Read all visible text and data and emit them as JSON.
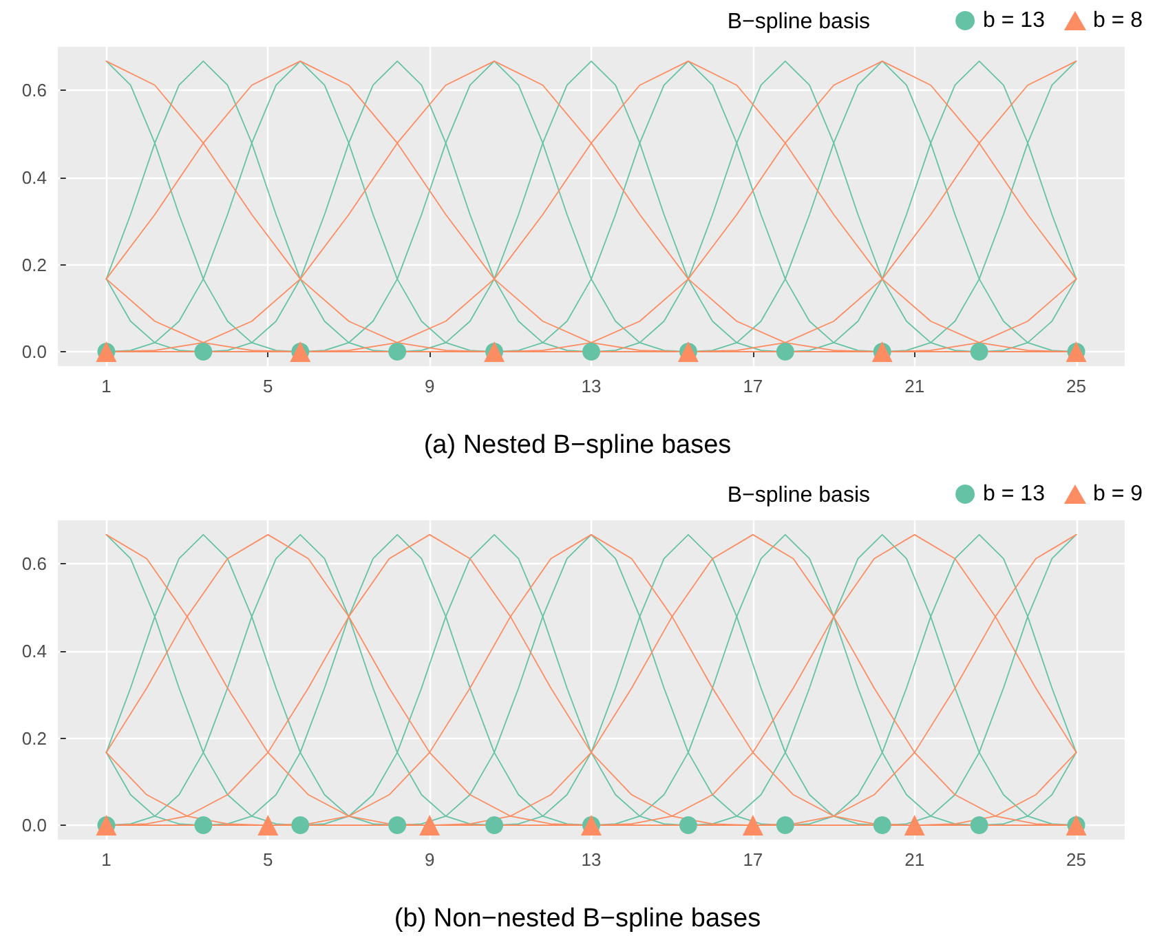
{
  "chart_data": [
    {
      "type": "line",
      "title": "(a) Nested B−spline bases",
      "legend_title": "B−spline basis",
      "legend": "top right",
      "grid": true,
      "xlim": [
        -0.2,
        26.2
      ],
      "ylim": [
        -0.033,
        0.7
      ],
      "xticks": [
        1,
        5,
        9,
        13,
        17,
        21,
        25
      ],
      "yticks": [
        {
          "value": 0,
          "label": "0.0"
        },
        {
          "value": 0.2,
          "label": "0.2"
        },
        {
          "value": 0.4,
          "label": "0.4"
        },
        {
          "value": 0.6,
          "label": "0.6"
        }
      ],
      "series": [
        {
          "color": "#66c2a5",
          "x": [
            1,
            1.6,
            2.2,
            2.8,
            3.4,
            25
          ],
          "values": [
            0.167,
            0.07,
            0.021,
            0.003,
            0,
            0
          ]
        },
        {
          "color": "#66c2a5",
          "x": [
            1,
            1.6,
            2.2,
            2.8,
            3.4,
            4,
            4.6,
            5.2,
            5.8,
            25
          ],
          "values": [
            0.667,
            0.612,
            0.479,
            0.315,
            0.167,
            0.07,
            0.021,
            0.003,
            0,
            0
          ]
        },
        {
          "color": "#66c2a5",
          "x": [
            1,
            1.6,
            2.2,
            2.8,
            3.4,
            4,
            4.6,
            5.2,
            5.8,
            6.4,
            7,
            7.6,
            8.2,
            25
          ],
          "values": [
            0.167,
            0.315,
            0.479,
            0.612,
            0.667,
            0.612,
            0.479,
            0.315,
            0.167,
            0.07,
            0.021,
            0.003,
            0,
            0
          ]
        },
        {
          "color": "#66c2a5",
          "x": [
            1,
            1.6,
            2.2,
            2.8,
            3.4,
            4,
            4.6,
            5.2,
            5.8,
            6.4,
            7,
            7.6,
            8.2,
            8.8,
            9.4,
            10,
            10.6,
            25
          ],
          "values": [
            0,
            0.003,
            0.021,
            0.07,
            0.167,
            0.315,
            0.479,
            0.612,
            0.667,
            0.612,
            0.479,
            0.315,
            0.167,
            0.07,
            0.021,
            0.003,
            0,
            0
          ]
        },
        {
          "color": "#66c2a5",
          "x": [
            1,
            3.4,
            4,
            4.6,
            5.2,
            5.8,
            6.4,
            7,
            7.6,
            8.2,
            8.8,
            9.4,
            10,
            10.6,
            11.2,
            11.8,
            12.4,
            13,
            25
          ],
          "values": [
            0,
            0,
            0.003,
            0.021,
            0.07,
            0.167,
            0.315,
            0.479,
            0.612,
            0.667,
            0.612,
            0.479,
            0.315,
            0.167,
            0.07,
            0.021,
            0.003,
            0,
            0
          ]
        },
        {
          "color": "#66c2a5",
          "x": [
            1,
            5.8,
            6.4,
            7,
            7.6,
            8.2,
            8.8,
            9.4,
            10,
            10.6,
            11.2,
            11.8,
            12.4,
            13,
            13.6,
            14.2,
            14.8,
            15.4,
            25
          ],
          "values": [
            0,
            0,
            0.003,
            0.021,
            0.07,
            0.167,
            0.315,
            0.479,
            0.612,
            0.667,
            0.612,
            0.479,
            0.315,
            0.167,
            0.07,
            0.021,
            0.003,
            0,
            0
          ]
        },
        {
          "color": "#66c2a5",
          "x": [
            1,
            8.2,
            8.8,
            9.4,
            10,
            10.6,
            11.2,
            11.8,
            12.4,
            13,
            13.6,
            14.2,
            14.8,
            15.4,
            16,
            16.6,
            17.2,
            17.8,
            25
          ],
          "values": [
            0,
            0,
            0.003,
            0.021,
            0.07,
            0.167,
            0.315,
            0.479,
            0.612,
            0.667,
            0.612,
            0.479,
            0.315,
            0.167,
            0.07,
            0.021,
            0.003,
            0,
            0
          ]
        },
        {
          "color": "#66c2a5",
          "x": [
            1,
            10.6,
            11.2,
            11.8,
            12.4,
            13,
            13.6,
            14.2,
            14.8,
            15.4,
            16,
            16.6,
            17.2,
            17.8,
            18.4,
            19,
            19.6,
            20.2,
            25
          ],
          "values": [
            0,
            0,
            0.003,
            0.021,
            0.07,
            0.167,
            0.315,
            0.479,
            0.612,
            0.667,
            0.612,
            0.479,
            0.315,
            0.167,
            0.07,
            0.021,
            0.003,
            0,
            0
          ]
        },
        {
          "color": "#66c2a5",
          "x": [
            1,
            13,
            13.6,
            14.2,
            14.8,
            15.4,
            16,
            16.6,
            17.2,
            17.8,
            18.4,
            19,
            19.6,
            20.2,
            20.8,
            21.4,
            22,
            22.6,
            25
          ],
          "values": [
            0,
            0,
            0.003,
            0.021,
            0.07,
            0.167,
            0.315,
            0.479,
            0.612,
            0.667,
            0.612,
            0.479,
            0.315,
            0.167,
            0.07,
            0.021,
            0.003,
            0,
            0
          ]
        },
        {
          "color": "#66c2a5",
          "x": [
            1,
            15.4,
            16,
            16.6,
            17.2,
            17.8,
            18.4,
            19,
            19.6,
            20.2,
            20.8,
            21.4,
            22,
            22.6,
            23.2,
            23.8,
            24.4,
            25
          ],
          "values": [
            0,
            0,
            0.003,
            0.021,
            0.07,
            0.167,
            0.315,
            0.479,
            0.612,
            0.667,
            0.612,
            0.479,
            0.315,
            0.167,
            0.07,
            0.021,
            0.003,
            0
          ]
        },
        {
          "color": "#66c2a5",
          "x": [
            1,
            17.8,
            18.4,
            19,
            19.6,
            20.2,
            20.8,
            21.4,
            22,
            22.6,
            23.2,
            23.8,
            24.4,
            25
          ],
          "values": [
            0,
            0,
            0.003,
            0.021,
            0.07,
            0.167,
            0.315,
            0.479,
            0.612,
            0.667,
            0.612,
            0.479,
            0.315,
            0.167
          ]
        },
        {
          "color": "#66c2a5",
          "x": [
            1,
            20.2,
            20.8,
            21.4,
            22,
            22.6,
            23.2,
            23.8,
            24.4,
            25
          ],
          "values": [
            0,
            0,
            0.003,
            0.021,
            0.07,
            0.167,
            0.315,
            0.479,
            0.612,
            0.667
          ]
        },
        {
          "color": "#66c2a5",
          "x": [
            1,
            22.6,
            23.2,
            23.8,
            24.4,
            25
          ],
          "values": [
            0,
            0,
            0.003,
            0.021,
            0.07,
            0.167
          ]
        },
        {
          "color": "#fc8d62",
          "x": [
            1,
            2.2,
            3.4,
            4.6,
            5.8,
            25
          ],
          "values": [
            0.167,
            0.07,
            0.021,
            0.003,
            0,
            0
          ]
        },
        {
          "color": "#fc8d62",
          "x": [
            1,
            2.2,
            3.4,
            4.6,
            5.8,
            7,
            8.2,
            9.4,
            10.6,
            25
          ],
          "values": [
            0.667,
            0.612,
            0.479,
            0.315,
            0.167,
            0.07,
            0.021,
            0.003,
            0,
            0
          ]
        },
        {
          "color": "#fc8d62",
          "x": [
            1,
            2.2,
            3.4,
            4.6,
            5.8,
            7,
            8.2,
            9.4,
            10.6,
            11.8,
            13,
            14.2,
            15.4,
            25
          ],
          "values": [
            0.167,
            0.315,
            0.479,
            0.612,
            0.667,
            0.612,
            0.479,
            0.315,
            0.167,
            0.07,
            0.021,
            0.003,
            0,
            0
          ]
        },
        {
          "color": "#fc8d62",
          "x": [
            1,
            2.2,
            3.4,
            4.6,
            5.8,
            7,
            8.2,
            9.4,
            10.6,
            11.8,
            13,
            14.2,
            15.4,
            16.6,
            17.8,
            19,
            20.2,
            25
          ],
          "values": [
            0,
            0.003,
            0.021,
            0.07,
            0.167,
            0.315,
            0.479,
            0.612,
            0.667,
            0.612,
            0.479,
            0.315,
            0.167,
            0.07,
            0.021,
            0.003,
            0,
            0
          ]
        },
        {
          "color": "#fc8d62",
          "x": [
            1,
            5.8,
            7,
            8.2,
            9.4,
            10.6,
            11.8,
            13,
            14.2,
            15.4,
            16.6,
            17.8,
            19,
            20.2,
            21.4,
            22.6,
            23.8,
            25
          ],
          "values": [
            0,
            0,
            0.003,
            0.021,
            0.07,
            0.167,
            0.315,
            0.479,
            0.612,
            0.667,
            0.612,
            0.479,
            0.315,
            0.167,
            0.07,
            0.021,
            0.003,
            0
          ]
        },
        {
          "color": "#fc8d62",
          "x": [
            1,
            10.6,
            11.8,
            13,
            14.2,
            15.4,
            16.6,
            17.8,
            19,
            20.2,
            21.4,
            22.6,
            23.8,
            25
          ],
          "values": [
            0,
            0,
            0.003,
            0.021,
            0.07,
            0.167,
            0.315,
            0.479,
            0.612,
            0.667,
            0.612,
            0.479,
            0.315,
            0.167
          ]
        },
        {
          "color": "#fc8d62",
          "x": [
            1,
            15.4,
            16.6,
            17.8,
            19,
            20.2,
            21.4,
            22.6,
            23.8,
            25
          ],
          "values": [
            0,
            0,
            0.003,
            0.021,
            0.07,
            0.167,
            0.315,
            0.479,
            0.612,
            0.667
          ]
        },
        {
          "color": "#fc8d62",
          "x": [
            1,
            20.2,
            21.4,
            22.6,
            23.8,
            25
          ],
          "values": [
            0,
            0,
            0.003,
            0.021,
            0.07,
            0.167
          ]
        },
        {
          "type": "scatter",
          "name": "b = 13",
          "marker": "circle",
          "color": "#66c2a5",
          "x": [
            1,
            3.4,
            5.8,
            8.2,
            10.6,
            13,
            15.4,
            17.8,
            20.2,
            22.6,
            25
          ],
          "values": [
            0,
            0,
            0,
            0,
            0,
            0,
            0,
            0,
            0,
            0,
            0
          ]
        },
        {
          "type": "scatter",
          "name": "b = 8",
          "marker": "triangle",
          "color": "#fc8d62",
          "x": [
            1,
            5.8,
            10.6,
            15.4,
            20.2,
            25
          ],
          "values": [
            0,
            0,
            0,
            0,
            0,
            0
          ]
        }
      ]
    },
    {
      "type": "line",
      "title": "(b) Non−nested B−spline bases",
      "legend_title": "B−spline basis",
      "legend": "top right",
      "grid": true,
      "xlim": [
        -0.2,
        26.2
      ],
      "ylim": [
        -0.033,
        0.7
      ],
      "xticks": [
        1,
        5,
        9,
        13,
        17,
        21,
        25
      ],
      "yticks": [
        {
          "value": 0,
          "label": "0.0"
        },
        {
          "value": 0.2,
          "label": "0.2"
        },
        {
          "value": 0.4,
          "label": "0.4"
        },
        {
          "value": 0.6,
          "label": "0.6"
        }
      ],
      "series": [
        {
          "color": "#66c2a5",
          "x": [
            1,
            1.6,
            2.2,
            2.8,
            3.4,
            25
          ],
          "values": [
            0.167,
            0.07,
            0.021,
            0.003,
            0,
            0
          ]
        },
        {
          "color": "#66c2a5",
          "x": [
            1,
            1.6,
            2.2,
            2.8,
            3.4,
            4,
            4.6,
            5.2,
            5.8,
            25
          ],
          "values": [
            0.667,
            0.612,
            0.479,
            0.315,
            0.167,
            0.07,
            0.021,
            0.003,
            0,
            0
          ]
        },
        {
          "color": "#66c2a5",
          "x": [
            1,
            1.6,
            2.2,
            2.8,
            3.4,
            4,
            4.6,
            5.2,
            5.8,
            6.4,
            7,
            7.6,
            8.2,
            25
          ],
          "values": [
            0.167,
            0.315,
            0.479,
            0.612,
            0.667,
            0.612,
            0.479,
            0.315,
            0.167,
            0.07,
            0.021,
            0.003,
            0,
            0
          ]
        },
        {
          "color": "#66c2a5",
          "x": [
            1,
            1.6,
            2.2,
            2.8,
            3.4,
            4,
            4.6,
            5.2,
            5.8,
            6.4,
            7,
            7.6,
            8.2,
            8.8,
            9.4,
            10,
            10.6,
            25
          ],
          "values": [
            0,
            0.003,
            0.021,
            0.07,
            0.167,
            0.315,
            0.479,
            0.612,
            0.667,
            0.612,
            0.479,
            0.315,
            0.167,
            0.07,
            0.021,
            0.003,
            0,
            0
          ]
        },
        {
          "color": "#66c2a5",
          "x": [
            1,
            3.4,
            4,
            4.6,
            5.2,
            5.8,
            6.4,
            7,
            7.6,
            8.2,
            8.8,
            9.4,
            10,
            10.6,
            11.2,
            11.8,
            12.4,
            13,
            25
          ],
          "values": [
            0,
            0,
            0.003,
            0.021,
            0.07,
            0.167,
            0.315,
            0.479,
            0.612,
            0.667,
            0.612,
            0.479,
            0.315,
            0.167,
            0.07,
            0.021,
            0.003,
            0,
            0
          ]
        },
        {
          "color": "#66c2a5",
          "x": [
            1,
            5.8,
            6.4,
            7,
            7.6,
            8.2,
            8.8,
            9.4,
            10,
            10.6,
            11.2,
            11.8,
            12.4,
            13,
            13.6,
            14.2,
            14.8,
            15.4,
            25
          ],
          "values": [
            0,
            0,
            0.003,
            0.021,
            0.07,
            0.167,
            0.315,
            0.479,
            0.612,
            0.667,
            0.612,
            0.479,
            0.315,
            0.167,
            0.07,
            0.021,
            0.003,
            0,
            0
          ]
        },
        {
          "color": "#66c2a5",
          "x": [
            1,
            8.2,
            8.8,
            9.4,
            10,
            10.6,
            11.2,
            11.8,
            12.4,
            13,
            13.6,
            14.2,
            14.8,
            15.4,
            16,
            16.6,
            17.2,
            17.8,
            25
          ],
          "values": [
            0,
            0,
            0.003,
            0.021,
            0.07,
            0.167,
            0.315,
            0.479,
            0.612,
            0.667,
            0.612,
            0.479,
            0.315,
            0.167,
            0.07,
            0.021,
            0.003,
            0,
            0
          ]
        },
        {
          "color": "#66c2a5",
          "x": [
            1,
            10.6,
            11.2,
            11.8,
            12.4,
            13,
            13.6,
            14.2,
            14.8,
            15.4,
            16,
            16.6,
            17.2,
            17.8,
            18.4,
            19,
            19.6,
            20.2,
            25
          ],
          "values": [
            0,
            0,
            0.003,
            0.021,
            0.07,
            0.167,
            0.315,
            0.479,
            0.612,
            0.667,
            0.612,
            0.479,
            0.315,
            0.167,
            0.07,
            0.021,
            0.003,
            0,
            0
          ]
        },
        {
          "color": "#66c2a5",
          "x": [
            1,
            13,
            13.6,
            14.2,
            14.8,
            15.4,
            16,
            16.6,
            17.2,
            17.8,
            18.4,
            19,
            19.6,
            20.2,
            20.8,
            21.4,
            22,
            22.6,
            25
          ],
          "values": [
            0,
            0,
            0.003,
            0.021,
            0.07,
            0.167,
            0.315,
            0.479,
            0.612,
            0.667,
            0.612,
            0.479,
            0.315,
            0.167,
            0.07,
            0.021,
            0.003,
            0,
            0
          ]
        },
        {
          "color": "#66c2a5",
          "x": [
            1,
            15.4,
            16,
            16.6,
            17.2,
            17.8,
            18.4,
            19,
            19.6,
            20.2,
            20.8,
            21.4,
            22,
            22.6,
            23.2,
            23.8,
            24.4,
            25
          ],
          "values": [
            0,
            0,
            0.003,
            0.021,
            0.07,
            0.167,
            0.315,
            0.479,
            0.612,
            0.667,
            0.612,
            0.479,
            0.315,
            0.167,
            0.07,
            0.021,
            0.003,
            0
          ]
        },
        {
          "color": "#66c2a5",
          "x": [
            1,
            17.8,
            18.4,
            19,
            19.6,
            20.2,
            20.8,
            21.4,
            22,
            22.6,
            23.2,
            23.8,
            24.4,
            25
          ],
          "values": [
            0,
            0,
            0.003,
            0.021,
            0.07,
            0.167,
            0.315,
            0.479,
            0.612,
            0.667,
            0.612,
            0.479,
            0.315,
            0.167
          ]
        },
        {
          "color": "#66c2a5",
          "x": [
            1,
            20.2,
            20.8,
            21.4,
            22,
            22.6,
            23.2,
            23.8,
            24.4,
            25
          ],
          "values": [
            0,
            0,
            0.003,
            0.021,
            0.07,
            0.167,
            0.315,
            0.479,
            0.612,
            0.667
          ]
        },
        {
          "color": "#66c2a5",
          "x": [
            1,
            22.6,
            23.2,
            23.8,
            24.4,
            25
          ],
          "values": [
            0,
            0,
            0.003,
            0.021,
            0.07,
            0.167
          ]
        },
        {
          "color": "#fc8d62",
          "x": [
            1,
            2,
            3,
            4,
            5,
            25
          ],
          "values": [
            0.167,
            0.07,
            0.021,
            0.003,
            0,
            0
          ]
        },
        {
          "color": "#fc8d62",
          "x": [
            1,
            2,
            3,
            4,
            5,
            6,
            7,
            8,
            9,
            25
          ],
          "values": [
            0.667,
            0.612,
            0.479,
            0.315,
            0.167,
            0.07,
            0.021,
            0.003,
            0,
            0
          ]
        },
        {
          "color": "#fc8d62",
          "x": [
            1,
            2,
            3,
            4,
            5,
            6,
            7,
            8,
            9,
            10,
            11,
            12,
            13,
            25
          ],
          "values": [
            0.167,
            0.315,
            0.479,
            0.612,
            0.667,
            0.612,
            0.479,
            0.315,
            0.167,
            0.07,
            0.021,
            0.003,
            0,
            0
          ]
        },
        {
          "color": "#fc8d62",
          "x": [
            1,
            2,
            3,
            4,
            5,
            6,
            7,
            8,
            9,
            10,
            11,
            12,
            13,
            14,
            15,
            16,
            17,
            25
          ],
          "values": [
            0,
            0.003,
            0.021,
            0.07,
            0.167,
            0.315,
            0.479,
            0.612,
            0.667,
            0.612,
            0.479,
            0.315,
            0.167,
            0.07,
            0.021,
            0.003,
            0,
            0
          ]
        },
        {
          "color": "#fc8d62",
          "x": [
            1,
            5,
            6,
            7,
            8,
            9,
            10,
            11,
            12,
            13,
            14,
            15,
            16,
            17,
            18,
            19,
            20,
            21,
            25
          ],
          "values": [
            0,
            0,
            0.003,
            0.021,
            0.07,
            0.167,
            0.315,
            0.479,
            0.612,
            0.667,
            0.612,
            0.479,
            0.315,
            0.167,
            0.07,
            0.021,
            0.003,
            0,
            0
          ]
        },
        {
          "color": "#fc8d62",
          "x": [
            1,
            9,
            10,
            11,
            12,
            13,
            14,
            15,
            16,
            17,
            18,
            19,
            20,
            21,
            22,
            23,
            24,
            25
          ],
          "values": [
            0,
            0,
            0.003,
            0.021,
            0.07,
            0.167,
            0.315,
            0.479,
            0.612,
            0.667,
            0.612,
            0.479,
            0.315,
            0.167,
            0.07,
            0.021,
            0.003,
            0
          ]
        },
        {
          "color": "#fc8d62",
          "x": [
            1,
            13,
            14,
            15,
            16,
            17,
            18,
            19,
            20,
            21,
            22,
            23,
            24,
            25
          ],
          "values": [
            0,
            0,
            0.003,
            0.021,
            0.07,
            0.167,
            0.315,
            0.479,
            0.612,
            0.667,
            0.612,
            0.479,
            0.315,
            0.167
          ]
        },
        {
          "color": "#fc8d62",
          "x": [
            1,
            17,
            18,
            19,
            20,
            21,
            22,
            23,
            24,
            25
          ],
          "values": [
            0,
            0,
            0.003,
            0.021,
            0.07,
            0.167,
            0.315,
            0.479,
            0.612,
            0.667
          ]
        },
        {
          "color": "#fc8d62",
          "x": [
            1,
            21,
            22,
            23,
            24,
            25
          ],
          "values": [
            0,
            0,
            0.003,
            0.021,
            0.07,
            0.167
          ]
        },
        {
          "type": "scatter",
          "name": "b = 13",
          "marker": "circle",
          "color": "#66c2a5",
          "x": [
            1,
            3.4,
            5.8,
            8.2,
            10.6,
            13,
            15.4,
            17.8,
            20.2,
            22.6,
            25
          ],
          "values": [
            0,
            0,
            0,
            0,
            0,
            0,
            0,
            0,
            0,
            0,
            0
          ]
        },
        {
          "type": "scatter",
          "name": "b = 9",
          "marker": "triangle",
          "color": "#fc8d62",
          "x": [
            1,
            5,
            9,
            13,
            17,
            21,
            25
          ],
          "values": [
            0,
            0,
            0,
            0,
            0,
            0,
            0
          ]
        }
      ]
    }
  ]
}
